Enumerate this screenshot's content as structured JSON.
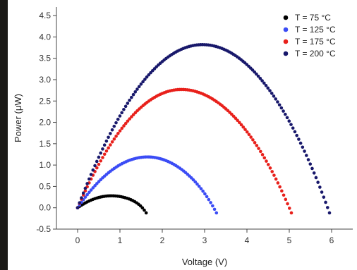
{
  "chart_data": {
    "type": "scatter",
    "title": "",
    "xlabel": "Voltage (V)",
    "ylabel": "Power (μW)",
    "xlim": [
      -0.5,
      6.5
    ],
    "ylim": [
      -0.5,
      4.7
    ],
    "xticks": [
      0,
      1,
      2,
      3,
      4,
      5,
      6
    ],
    "xtick_labels": [
      "0",
      "1",
      "2",
      "3",
      "4",
      "5",
      "6"
    ],
    "yticks": [
      -0.5,
      0.0,
      0.5,
      1.0,
      1.5,
      2.0,
      2.5,
      3.0,
      3.5,
      4.0,
      4.5
    ],
    "ytick_labels": [
      "-0.5",
      "0.0",
      "0.5",
      "1.0",
      "1.5",
      "2.0",
      "2.5",
      "3.0",
      "3.5",
      "4.0",
      "4.5"
    ],
    "grid": false,
    "legend_position": "top-right",
    "series": [
      {
        "name": "T = 75 °C",
        "color": "#000000",
        "voc": 1.62,
        "vmp": 0.8,
        "pmax": 0.28,
        "x": [
          0,
          0.2,
          0.4,
          0.6,
          0.8,
          1.0,
          1.2,
          1.4,
          1.6
        ],
        "y": [
          0,
          0.14,
          0.22,
          0.27,
          0.28,
          0.26,
          0.21,
          0.13,
          0.02
        ]
      },
      {
        "name": "T = 125 °C",
        "color": "#3b4cf5",
        "voc": 3.28,
        "vmp": 1.65,
        "pmax": 1.19,
        "x": [
          0,
          0.4,
          0.8,
          1.2,
          1.6,
          2.0,
          2.4,
          2.8,
          3.2
        ],
        "y": [
          0,
          0.63,
          0.97,
          1.15,
          1.19,
          1.14,
          0.96,
          0.64,
          0.11
        ]
      },
      {
        "name": "T = 175 °C",
        "color": "#e8201b",
        "voc": 5.05,
        "vmp": 2.45,
        "pmax": 2.77,
        "x": [
          0,
          0.5,
          1.0,
          1.5,
          2.0,
          2.5,
          3.0,
          3.5,
          4.0,
          4.5,
          5.0
        ],
        "y": [
          0,
          1.02,
          1.81,
          2.37,
          2.7,
          2.77,
          2.6,
          2.19,
          1.53,
          0.63,
          -0.1
        ]
      },
      {
        "name": "T = 200 °C",
        "color": "#18186b",
        "voc": 5.95,
        "vmp": 2.95,
        "pmax": 3.82,
        "x": [
          0,
          0.5,
          1.0,
          1.5,
          2.0,
          2.5,
          3.0,
          3.5,
          4.0,
          4.5,
          5.0,
          5.5,
          5.9
        ],
        "y": [
          0,
          1.19,
          2.2,
          3.01,
          3.53,
          3.79,
          3.82,
          3.63,
          3.21,
          2.57,
          1.7,
          0.64,
          -0.12
        ]
      }
    ]
  }
}
